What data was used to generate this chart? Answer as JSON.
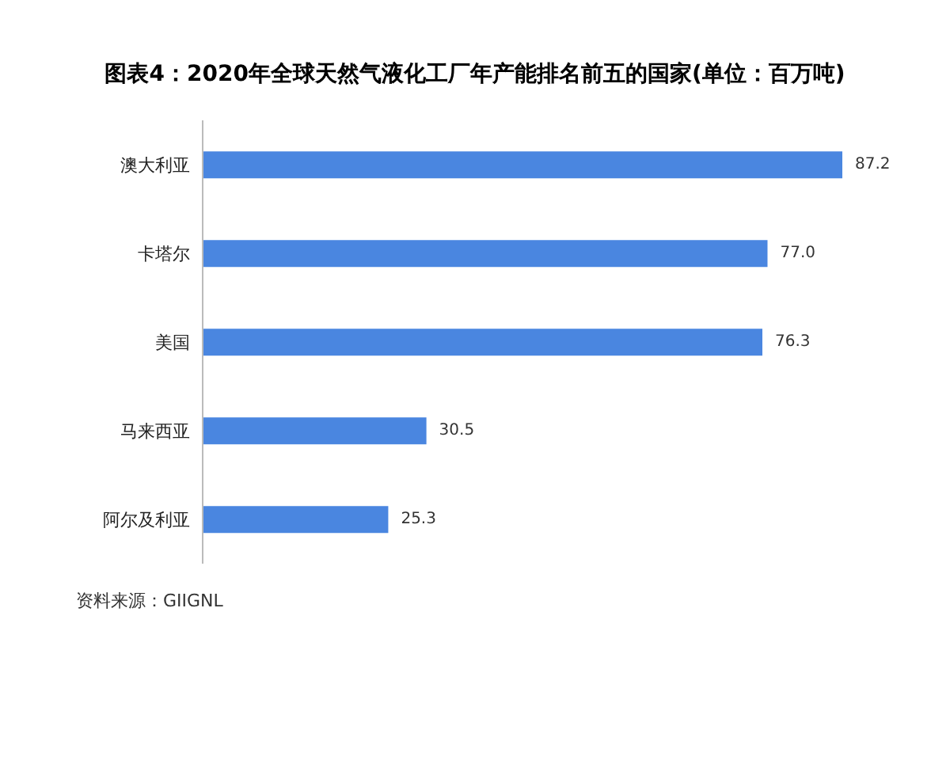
{
  "chart_data": {
    "type": "bar",
    "orientation": "horizontal",
    "title": "图表4：2020年全球天然气液化工厂年产能排名前五的国家(单位：百万吨)",
    "categories": [
      "澳大利亚",
      "卡塔尔",
      "美国",
      "马来西亚",
      "阿尔及利亚"
    ],
    "values": [
      87.2,
      77.0,
      76.3,
      30.5,
      25.3
    ],
    "value_labels": [
      "87.2",
      "77.0",
      "76.3",
      "30.5",
      "25.3"
    ],
    "color": "#4a86e0",
    "annotations": [
      "资料来源：GIIGNL"
    ]
  }
}
